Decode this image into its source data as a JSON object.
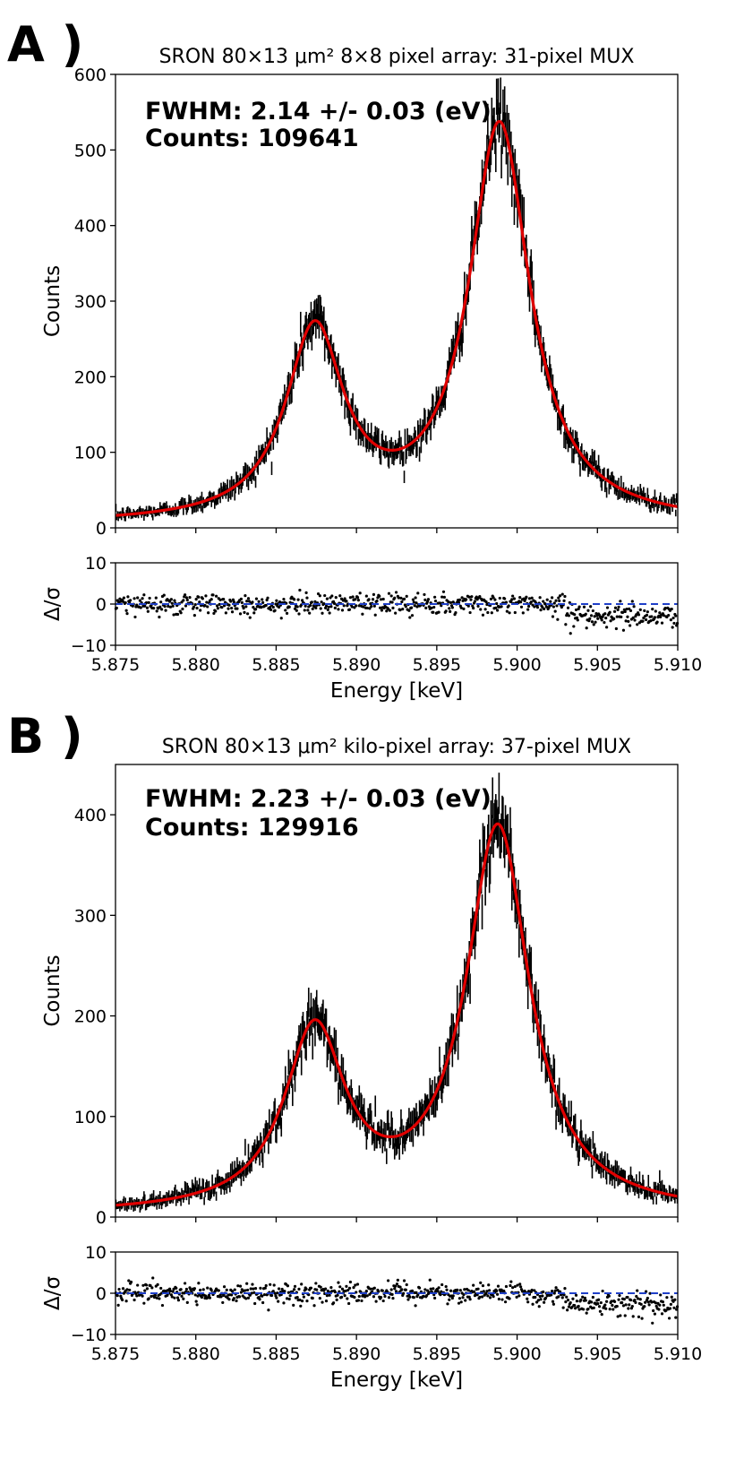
{
  "chart_data": [
    {
      "type": "line",
      "panel_label": "A )",
      "title": "SRON 80×13 μm² 8×8 pixel array: 31-pixel MUX",
      "xlabel": "Energy [keV]",
      "ylabel": "Counts",
      "residual_ylabel": "Δ/σ",
      "xlim": [
        5.875,
        5.91
      ],
      "ylim": [
        0,
        600
      ],
      "residual_ylim": [
        -10,
        10
      ],
      "x_ticks": [
        "5.875",
        "5.880",
        "5.885",
        "5.890",
        "5.895",
        "5.900",
        "5.905",
        "5.910"
      ],
      "y_ticks": [
        "0",
        "100",
        "200",
        "300",
        "400",
        "500",
        "600"
      ],
      "residual_ticks": [
        "10",
        "0",
        "−10"
      ],
      "annotation": [
        "FWHM:  2.14 +/- 0.03 (eV)",
        "Counts: 109641"
      ],
      "fit_model": {
        "baseline": 4,
        "peaks": [
          {
            "center": 5.8874,
            "amplitude": 250,
            "hwhm": 0.0022
          },
          {
            "center": 5.8989,
            "amplitude": 525,
            "hwhm": 0.0023
          }
        ],
        "peak_shape": "lorentzian"
      },
      "series": [
        {
          "name": "data histogram",
          "color": "#000000"
        },
        {
          "name": "fit",
          "color": "#e00000"
        },
        {
          "name": "residuals",
          "color": "#000000"
        },
        {
          "name": "zero line",
          "color": "#1f3fc8"
        }
      ]
    },
    {
      "type": "line",
      "panel_label": "B )",
      "title": "SRON 80×13 μm² kilo-pixel array: 37-pixel MUX",
      "xlabel": "Energy [keV]",
      "ylabel": "Counts",
      "residual_ylabel": "Δ/σ",
      "xlim": [
        5.875,
        5.91
      ],
      "ylim": [
        0,
        450
      ],
      "residual_ylim": [
        -10,
        10
      ],
      "x_ticks": [
        "5.875",
        "5.880",
        "5.885",
        "5.890",
        "5.895",
        "5.900",
        "5.905",
        "5.910"
      ],
      "y_ticks": [
        "0",
        "100",
        "200",
        "300",
        "400"
      ],
      "residual_ticks": [
        "10",
        "0",
        "−10"
      ],
      "annotation": [
        "FWHM:  2.23 +/- 0.03 (eV)",
        "Counts: 129916"
      ],
      "fit_model": {
        "baseline": 2,
        "peaks": [
          {
            "center": 5.8874,
            "amplitude": 178,
            "hwhm": 0.0023
          },
          {
            "center": 5.8988,
            "amplitude": 382,
            "hwhm": 0.0024
          }
        ],
        "peak_shape": "lorentzian"
      },
      "series": [
        {
          "name": "data histogram",
          "color": "#000000"
        },
        {
          "name": "fit",
          "color": "#e00000"
        },
        {
          "name": "residuals",
          "color": "#000000"
        },
        {
          "name": "zero line",
          "color": "#1f3fc8"
        }
      ]
    }
  ]
}
